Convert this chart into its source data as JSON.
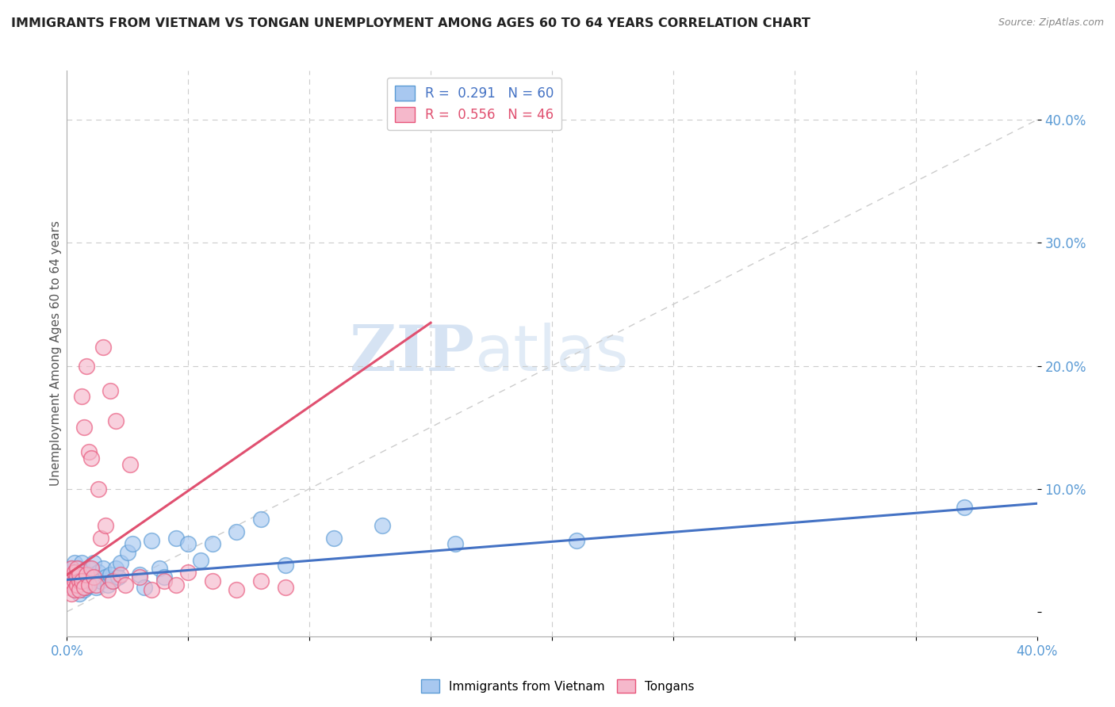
{
  "title": "IMMIGRANTS FROM VIETNAM VS TONGAN UNEMPLOYMENT AMONG AGES 60 TO 64 YEARS CORRELATION CHART",
  "source": "Source: ZipAtlas.com",
  "ylabel": "Unemployment Among Ages 60 to 64 years",
  "xlim": [
    0.0,
    0.4
  ],
  "ylim": [
    -0.02,
    0.44
  ],
  "watermark_zip": "ZIP",
  "watermark_atlas": "atlas",
  "vietnam_color": "#a8c8f0",
  "vietnam_edge": "#5b9bd5",
  "vietnam_line": "#4472c4",
  "tongan_color": "#f5b8cb",
  "tongan_edge": "#e8557a",
  "tongan_line": "#e05070",
  "grid_color": "#cccccc",
  "diag_color": "#cccccc",
  "background": "#ffffff",
  "tick_color": "#5b9bd5",
  "vietnam_trend_x0": 0.0,
  "vietnam_trend_y0": 0.026,
  "vietnam_trend_x1": 0.4,
  "vietnam_trend_y1": 0.088,
  "tongan_trend_x0": 0.0,
  "tongan_trend_y0": 0.03,
  "tongan_trend_x1": 0.15,
  "tongan_trend_y1": 0.235,
  "vietnam_x": [
    0.001,
    0.001,
    0.002,
    0.002,
    0.002,
    0.003,
    0.003,
    0.003,
    0.003,
    0.004,
    0.004,
    0.004,
    0.005,
    0.005,
    0.005,
    0.005,
    0.006,
    0.006,
    0.006,
    0.007,
    0.007,
    0.007,
    0.008,
    0.008,
    0.009,
    0.009,
    0.01,
    0.01,
    0.011,
    0.012,
    0.012,
    0.013,
    0.014,
    0.015,
    0.016,
    0.017,
    0.018,
    0.019,
    0.02,
    0.021,
    0.022,
    0.025,
    0.027,
    0.03,
    0.032,
    0.035,
    0.038,
    0.04,
    0.045,
    0.05,
    0.055,
    0.06,
    0.07,
    0.08,
    0.09,
    0.11,
    0.13,
    0.16,
    0.21,
    0.37
  ],
  "vietnam_y": [
    0.03,
    0.025,
    0.035,
    0.028,
    0.02,
    0.032,
    0.025,
    0.018,
    0.04,
    0.03,
    0.022,
    0.028,
    0.035,
    0.025,
    0.02,
    0.015,
    0.03,
    0.022,
    0.04,
    0.025,
    0.018,
    0.032,
    0.028,
    0.02,
    0.035,
    0.022,
    0.03,
    0.025,
    0.04,
    0.028,
    0.02,
    0.032,
    0.025,
    0.035,
    0.028,
    0.022,
    0.03,
    0.025,
    0.035,
    0.028,
    0.04,
    0.048,
    0.055,
    0.03,
    0.02,
    0.058,
    0.035,
    0.028,
    0.06,
    0.055,
    0.042,
    0.055,
    0.065,
    0.075,
    0.038,
    0.06,
    0.07,
    0.055,
    0.058,
    0.085
  ],
  "tongan_x": [
    0.001,
    0.001,
    0.002,
    0.002,
    0.002,
    0.003,
    0.003,
    0.003,
    0.004,
    0.004,
    0.004,
    0.005,
    0.005,
    0.005,
    0.006,
    0.006,
    0.007,
    0.007,
    0.008,
    0.008,
    0.009,
    0.009,
    0.01,
    0.01,
    0.011,
    0.012,
    0.013,
    0.014,
    0.015,
    0.016,
    0.017,
    0.018,
    0.019,
    0.02,
    0.022,
    0.024,
    0.026,
    0.03,
    0.035,
    0.04,
    0.045,
    0.05,
    0.06,
    0.07,
    0.08,
    0.09
  ],
  "tongan_y": [
    0.025,
    0.02,
    0.03,
    0.035,
    0.015,
    0.025,
    0.018,
    0.032,
    0.028,
    0.022,
    0.035,
    0.025,
    0.018,
    0.03,
    0.025,
    0.175,
    0.02,
    0.15,
    0.03,
    0.2,
    0.022,
    0.13,
    0.035,
    0.125,
    0.028,
    0.022,
    0.1,
    0.06,
    0.215,
    0.07,
    0.018,
    0.18,
    0.025,
    0.155,
    0.03,
    0.022,
    0.12,
    0.028,
    0.018,
    0.025,
    0.022,
    0.032,
    0.025,
    0.018,
    0.025,
    0.02
  ]
}
